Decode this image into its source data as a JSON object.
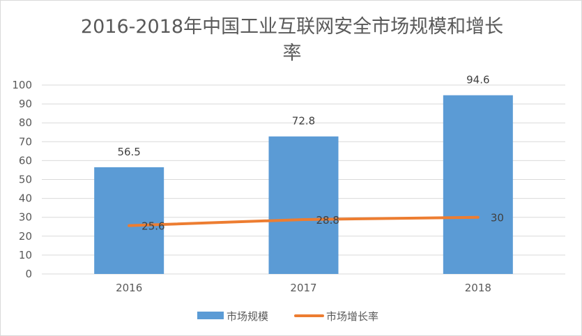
{
  "chart_data": {
    "type": "bar",
    "title_lines": [
      "2016-2018年中国工业互联网安全市场规模和增长",
      "率"
    ],
    "categories": [
      "2016",
      "2017",
      "2018"
    ],
    "series": [
      {
        "name": "市场规模",
        "kind": "bar",
        "color": "#5b9bd5",
        "values": [
          56.5,
          72.8,
          94.6
        ]
      },
      {
        "name": "市场增长率",
        "kind": "line",
        "color": "#ed7d31",
        "values": [
          25.6,
          28.8,
          30
        ]
      }
    ],
    "y_ticks": [
      "0",
      "10",
      "20",
      "30",
      "40",
      "50",
      "60",
      "70",
      "80",
      "90",
      "100"
    ],
    "ylim": [
      0,
      100
    ],
    "grid": true,
    "legend_position": "bottom"
  }
}
